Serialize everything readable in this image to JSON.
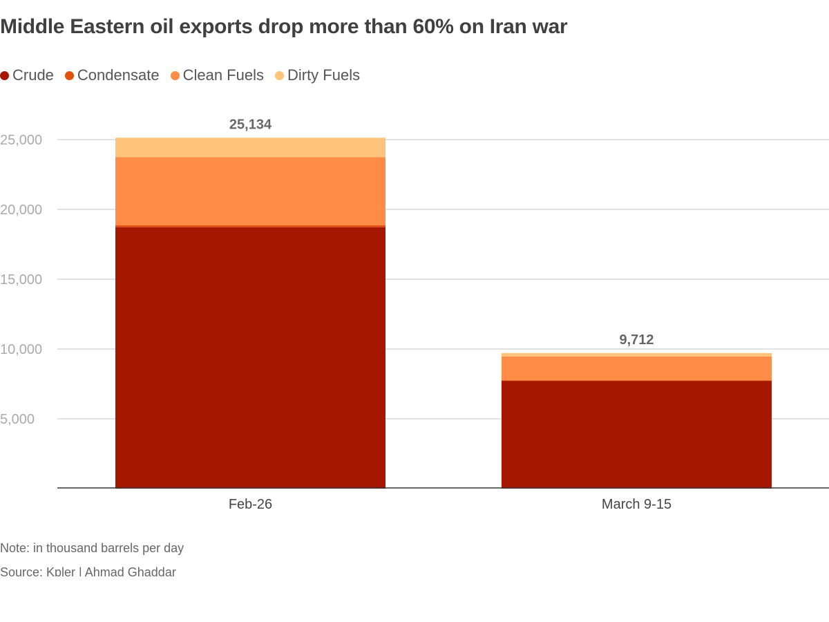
{
  "chart_data": {
    "type": "bar",
    "stacked": true,
    "title": "Middle Eastern oil exports drop more than 60% on Iran war",
    "categories": [
      "Feb-26",
      "March 9-15"
    ],
    "series": [
      {
        "name": "Crude",
        "color": "#a51700",
        "values": [
          18730,
          7720
        ]
      },
      {
        "name": "Condensate",
        "color": "#e2500e",
        "values": [
          130,
          30
        ]
      },
      {
        "name": "Clean Fuels",
        "color": "#ff8c46",
        "values": [
          4890,
          1720
        ]
      },
      {
        "name": "Dirty Fuels",
        "color": "#ffc47a",
        "values": [
          1384,
          242
        ]
      }
    ],
    "totals": [
      25134,
      9712
    ],
    "total_labels": [
      "25,134",
      "9,712"
    ],
    "ylim": [
      0,
      25000
    ],
    "yticks": [
      5000,
      10000,
      15000,
      20000,
      25000
    ],
    "ytick_labels": [
      "5,000",
      "10,000",
      "15,000",
      "20,000",
      "25,000"
    ],
    "grid": true,
    "legend_position": "top-left",
    "note": "Note: in thousand barrels per day",
    "source": "Source: Kpler | Ahmad Ghaddar"
  }
}
